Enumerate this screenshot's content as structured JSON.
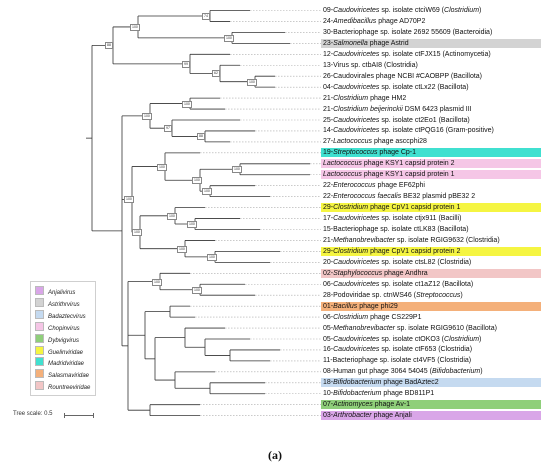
{
  "tips": [
    {
      "parts": [
        [
          "09-",
          false
        ],
        [
          "Caudoviricetes",
          true
        ],
        [
          " sp. isolate ctciW69 (",
          false
        ],
        [
          "Clostridium",
          true
        ],
        [
          ")",
          false
        ]
      ],
      "color": ""
    },
    {
      "parts": [
        [
          "24-",
          false
        ],
        [
          "Amedibacillus",
          true
        ],
        [
          " phage AD70P2",
          false
        ]
      ],
      "color": ""
    },
    {
      "parts": [
        [
          "30-Bacteriophage sp. isolate 2692 55609 (Bacteroidia)",
          false
        ]
      ],
      "color": ""
    },
    {
      "parts": [
        [
          "23-",
          false
        ],
        [
          "Salmonella",
          true
        ],
        [
          " phage Astrid",
          false
        ]
      ],
      "color": "#d3d3d3"
    },
    {
      "parts": [
        [
          "12-",
          false
        ],
        [
          "Caudoviricetes",
          true
        ],
        [
          " sp. isolate ctFJX15 (Actinomycetia)",
          false
        ]
      ],
      "color": ""
    },
    {
      "parts": [
        [
          "13-Virus sp. ctbAI8 (Clostridia)",
          false
        ]
      ],
      "color": ""
    },
    {
      "parts": [
        [
          "26-Caudovirales phage NCBI #CAOBPP (Bacillota)",
          false
        ]
      ],
      "color": ""
    },
    {
      "parts": [
        [
          "04-",
          false
        ],
        [
          "Caudoviricetes",
          true
        ],
        [
          " sp. isolate ctLx22 (Bacillota)",
          false
        ]
      ],
      "color": ""
    },
    {
      "parts": [
        [
          "21-",
          false
        ],
        [
          "Clostridium",
          true
        ],
        [
          " phage HM2",
          false
        ]
      ],
      "color": ""
    },
    {
      "parts": [
        [
          "21-",
          false
        ],
        [
          "Clostridium beijerinckii",
          true
        ],
        [
          " DSM 6423 plasmid III",
          false
        ]
      ],
      "color": ""
    },
    {
      "parts": [
        [
          "25-",
          false
        ],
        [
          "Caudoviricetes",
          true
        ],
        [
          " sp. isolate ct2Eo1 (Bacillota)",
          false
        ]
      ],
      "color": ""
    },
    {
      "parts": [
        [
          "14-",
          false
        ],
        [
          "Caudoviricetes",
          true
        ],
        [
          " sp. isolate ctPQG16 (Gram-positive)",
          false
        ]
      ],
      "color": ""
    },
    {
      "parts": [
        [
          "27-",
          false
        ],
        [
          "Lactococcus",
          true
        ],
        [
          " phage asccphi28",
          false
        ]
      ],
      "color": ""
    },
    {
      "parts": [
        [
          "19-",
          false
        ],
        [
          "Streptococcus",
          true
        ],
        [
          " phage Cp-1",
          false
        ]
      ],
      "color": "#40e0d0"
    },
    {
      "parts": [
        [
          "Lactococcus",
          true
        ],
        [
          " phage KSY1 capsid protein 2",
          false
        ]
      ],
      "color": "#f5c6e6"
    },
    {
      "parts": [
        [
          "Lactococcus",
          true
        ],
        [
          " phage KSY1 capsid protein 1",
          false
        ]
      ],
      "color": "#f5c6e6"
    },
    {
      "parts": [
        [
          "22-",
          false
        ],
        [
          "Enterococcus",
          true
        ],
        [
          " phage EF62phi",
          false
        ]
      ],
      "color": ""
    },
    {
      "parts": [
        [
          "22-",
          false
        ],
        [
          "Enterococcus faecalis",
          true
        ],
        [
          " BE32 plasmid pBE32 2",
          false
        ]
      ],
      "color": ""
    },
    {
      "parts": [
        [
          "29-",
          false
        ],
        [
          "Clostridium",
          true
        ],
        [
          " phage CpV1 capsid protein 1",
          false
        ]
      ],
      "color": "#f5f542"
    },
    {
      "parts": [
        [
          "17-",
          false
        ],
        [
          "Caudoviricetes",
          true
        ],
        [
          " sp. isolate ctjx911 (Bacilli)",
          false
        ]
      ],
      "color": ""
    },
    {
      "parts": [
        [
          "15-Bacteriophage sp. isolate ctLK83 (Bacillota)",
          false
        ]
      ],
      "color": ""
    },
    {
      "parts": [
        [
          "21-",
          false
        ],
        [
          "Methanobrevibacter",
          true
        ],
        [
          " sp. isolate RGIG9632 (Clostridia)",
          false
        ]
      ],
      "color": ""
    },
    {
      "parts": [
        [
          "29-",
          false
        ],
        [
          "Clostridium",
          true
        ],
        [
          " phage CpV1 capsid protein 2",
          false
        ]
      ],
      "color": "#f5f542"
    },
    {
      "parts": [
        [
          "20-",
          false
        ],
        [
          "Caudoviricetes",
          true
        ],
        [
          " sp. isolate ctsL82 (Clostridia)",
          false
        ]
      ],
      "color": ""
    },
    {
      "parts": [
        [
          "02-",
          false
        ],
        [
          "Staphylococcus",
          true
        ],
        [
          " phage Andhra",
          false
        ]
      ],
      "color": "#f2c6c6"
    },
    {
      "parts": [
        [
          "06-",
          false
        ],
        [
          "Caudoviricetes",
          true
        ],
        [
          " sp. isolate ct1aZ12 (Bacillota)",
          false
        ]
      ],
      "color": ""
    },
    {
      "parts": [
        [
          "28-Podoviridae sp. ctnWS46 (",
          false
        ],
        [
          "Streptococcus",
          true
        ],
        [
          ")",
          false
        ]
      ],
      "color": ""
    },
    {
      "parts": [
        [
          "01-",
          false
        ],
        [
          "Bacillus",
          true
        ],
        [
          " phage phi29",
          false
        ]
      ],
      "color": "#f4b07a"
    },
    {
      "parts": [
        [
          "06-",
          false
        ],
        [
          "Clostridium",
          true
        ],
        [
          " phage CS229P1",
          false
        ]
      ],
      "color": ""
    },
    {
      "parts": [
        [
          "05-",
          false
        ],
        [
          "Methanobrevibacter",
          true
        ],
        [
          " sp. isolate RGIG9610 (Bacillota)",
          false
        ]
      ],
      "color": ""
    },
    {
      "parts": [
        [
          "05-",
          false
        ],
        [
          "Caudoviricetes",
          true
        ],
        [
          " sp. isolate ctOKO3 (",
          false
        ],
        [
          "Clostridium",
          true
        ],
        [
          ")",
          false
        ]
      ],
      "color": ""
    },
    {
      "parts": [
        [
          "16-",
          false
        ],
        [
          "Caudoviricetes",
          true
        ],
        [
          " sp. isolate ctF653 (Clostridia)",
          false
        ]
      ],
      "color": ""
    },
    {
      "parts": [
        [
          "11-Bacteriophage sp. isolate ct4VF5 (Clostridia)",
          false
        ]
      ],
      "color": ""
    },
    {
      "parts": [
        [
          "08-Human gut phage 3064 54045 (",
          false
        ],
        [
          "Bifidobacterium",
          true
        ],
        [
          ")",
          false
        ]
      ],
      "color": ""
    },
    {
      "parts": [
        [
          "18-",
          false
        ],
        [
          "Bifidobacterium",
          true
        ],
        [
          " phage BadAztec2",
          false
        ]
      ],
      "color": "#c5daf0"
    },
    {
      "parts": [
        [
          "10-",
          false
        ],
        [
          "Bifidobacterium",
          true
        ],
        [
          " phage BD811P1",
          false
        ]
      ],
      "color": ""
    },
    {
      "parts": [
        [
          "07-",
          false
        ],
        [
          "Actinomyces",
          true
        ],
        [
          " phage Av-1",
          false
        ]
      ],
      "color": "#8fcf7a"
    },
    {
      "parts": [
        [
          "03-",
          false
        ],
        [
          "Arthrobacter",
          true
        ],
        [
          " phage Anjali",
          false
        ]
      ],
      "color": "#d9a6e8"
    }
  ],
  "legend": [
    {
      "label": "Anjalivirus",
      "color": "#d9a6e8"
    },
    {
      "label": "Astrithrvirus",
      "color": "#d3d3d3"
    },
    {
      "label": "Badaztecvirus",
      "color": "#c5daf0"
    },
    {
      "label": "Chopinvirus",
      "color": "#f5c6e6"
    },
    {
      "label": "Dybvigvirus",
      "color": "#8fcf7a"
    },
    {
      "label": "Guelinviridae",
      "color": "#f5f542"
    },
    {
      "label": "Madridviridae",
      "color": "#40e0d0"
    },
    {
      "label": "Salasmaviridae",
      "color": "#f4b07a"
    },
    {
      "label": "Rountreeviridae",
      "color": "#f2c6c6"
    }
  ],
  "scale_label": "Tree scale: 0.5",
  "caption": "(a)",
  "bootstrap_values": [
    "74",
    "100",
    "100",
    "100",
    "62",
    "99",
    "88",
    "100",
    "88",
    "97",
    "100",
    "100",
    "100",
    "100",
    "100",
    "100",
    "100",
    "100",
    "100",
    "100",
    "100",
    "100",
    "100"
  ]
}
